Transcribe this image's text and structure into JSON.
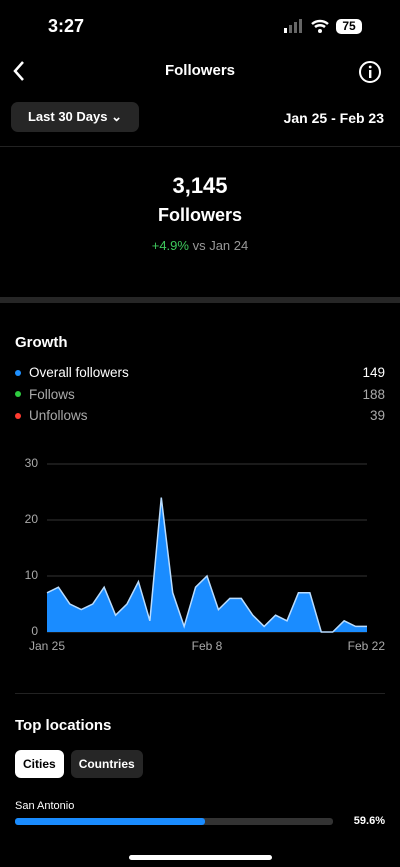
{
  "status_bar": {
    "time": "3:27",
    "battery": "75"
  },
  "header": {
    "title": "Followers"
  },
  "filter": {
    "range": "Last 30 Days",
    "dates": "Jan 25 - Feb 23"
  },
  "summary": {
    "count": "3,145",
    "label": "Followers",
    "change": "+4.9%",
    "compare": "vs Jan 24"
  },
  "growth": {
    "title": "Growth",
    "items": [
      {
        "name": "Overall followers",
        "value": 149,
        "color": "#1e90ff"
      },
      {
        "name": "Follows",
        "value": 188,
        "color": "#2ecc40"
      },
      {
        "name": "Unfollows",
        "value": 39,
        "color": "#ff3b30"
      }
    ]
  },
  "chart_data": {
    "type": "area",
    "color": "#1a8cff",
    "line_color": "#b8dcff",
    "grid": true,
    "categories": [
      "Jan 25",
      null,
      null,
      null,
      null,
      null,
      null,
      null,
      null,
      null,
      null,
      null,
      null,
      null,
      "Feb 8",
      null,
      null,
      null,
      null,
      null,
      null,
      null,
      null,
      null,
      null,
      null,
      null,
      null,
      "Feb 22"
    ],
    "values": [
      7,
      8,
      5,
      4,
      5,
      8,
      3,
      5,
      9,
      2,
      24,
      7,
      1,
      8,
      10,
      4,
      6,
      6,
      3,
      1,
      3,
      2,
      7,
      7,
      0,
      0,
      2,
      1,
      1
    ],
    "ylim": [
      0,
      30
    ],
    "yticks": [
      0,
      10,
      20,
      30
    ]
  },
  "locations": {
    "title": "Top locations",
    "tabs": [
      "Cities",
      "Countries"
    ],
    "xlim": [
      0,
      100
    ],
    "items": [
      {
        "name": "San Antonio",
        "value": 59.6,
        "value_label": "59.6%"
      }
    ]
  }
}
